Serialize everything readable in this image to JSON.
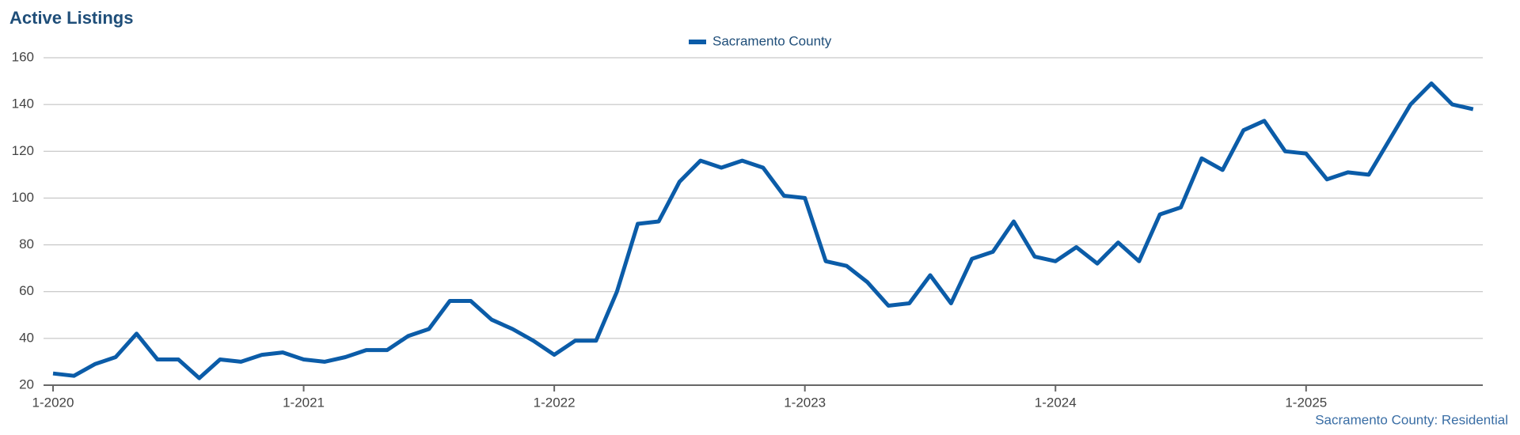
{
  "chart_data": {
    "type": "line",
    "title": "Active Listings",
    "source": "Sacramento County: Residential",
    "categories": [
      "1-2020",
      null,
      null,
      null,
      null,
      null,
      null,
      null,
      null,
      null,
      null,
      null,
      "1-2021",
      null,
      null,
      null,
      null,
      null,
      null,
      null,
      null,
      null,
      null,
      null,
      "1-2022",
      null,
      null,
      null,
      null,
      null,
      null,
      null,
      null,
      null,
      null,
      null,
      "1-2023",
      null,
      null,
      null,
      null,
      null,
      null,
      null,
      null,
      null,
      null,
      null,
      "1-2024",
      null,
      null,
      null,
      null,
      null,
      null,
      null,
      null,
      null,
      null,
      null,
      "1-2025",
      null,
      null,
      null,
      null,
      null,
      null,
      null,
      null
    ],
    "series": [
      {
        "name": "Sacramento County",
        "color": "#0b5ca8",
        "values": [
          25,
          24,
          29,
          32,
          42,
          31,
          31,
          23,
          31,
          30,
          33,
          34,
          31,
          30,
          32,
          35,
          35,
          41,
          44,
          56,
          56,
          48,
          44,
          39,
          33,
          39,
          39,
          60,
          89,
          90,
          107,
          116,
          113,
          116,
          113,
          101,
          100,
          73,
          71,
          64,
          54,
          55,
          67,
          55,
          74,
          77,
          90,
          75,
          73,
          79,
          72,
          81,
          73,
          93,
          96,
          117,
          112,
          129,
          133,
          120,
          119,
          108,
          111,
          110,
          125,
          140,
          149,
          140,
          138
        ]
      }
    ],
    "ylim": [
      20,
      160
    ],
    "yticks": [
      20,
      40,
      60,
      80,
      100,
      120,
      140,
      160
    ],
    "grid": true,
    "legend": "top"
  }
}
